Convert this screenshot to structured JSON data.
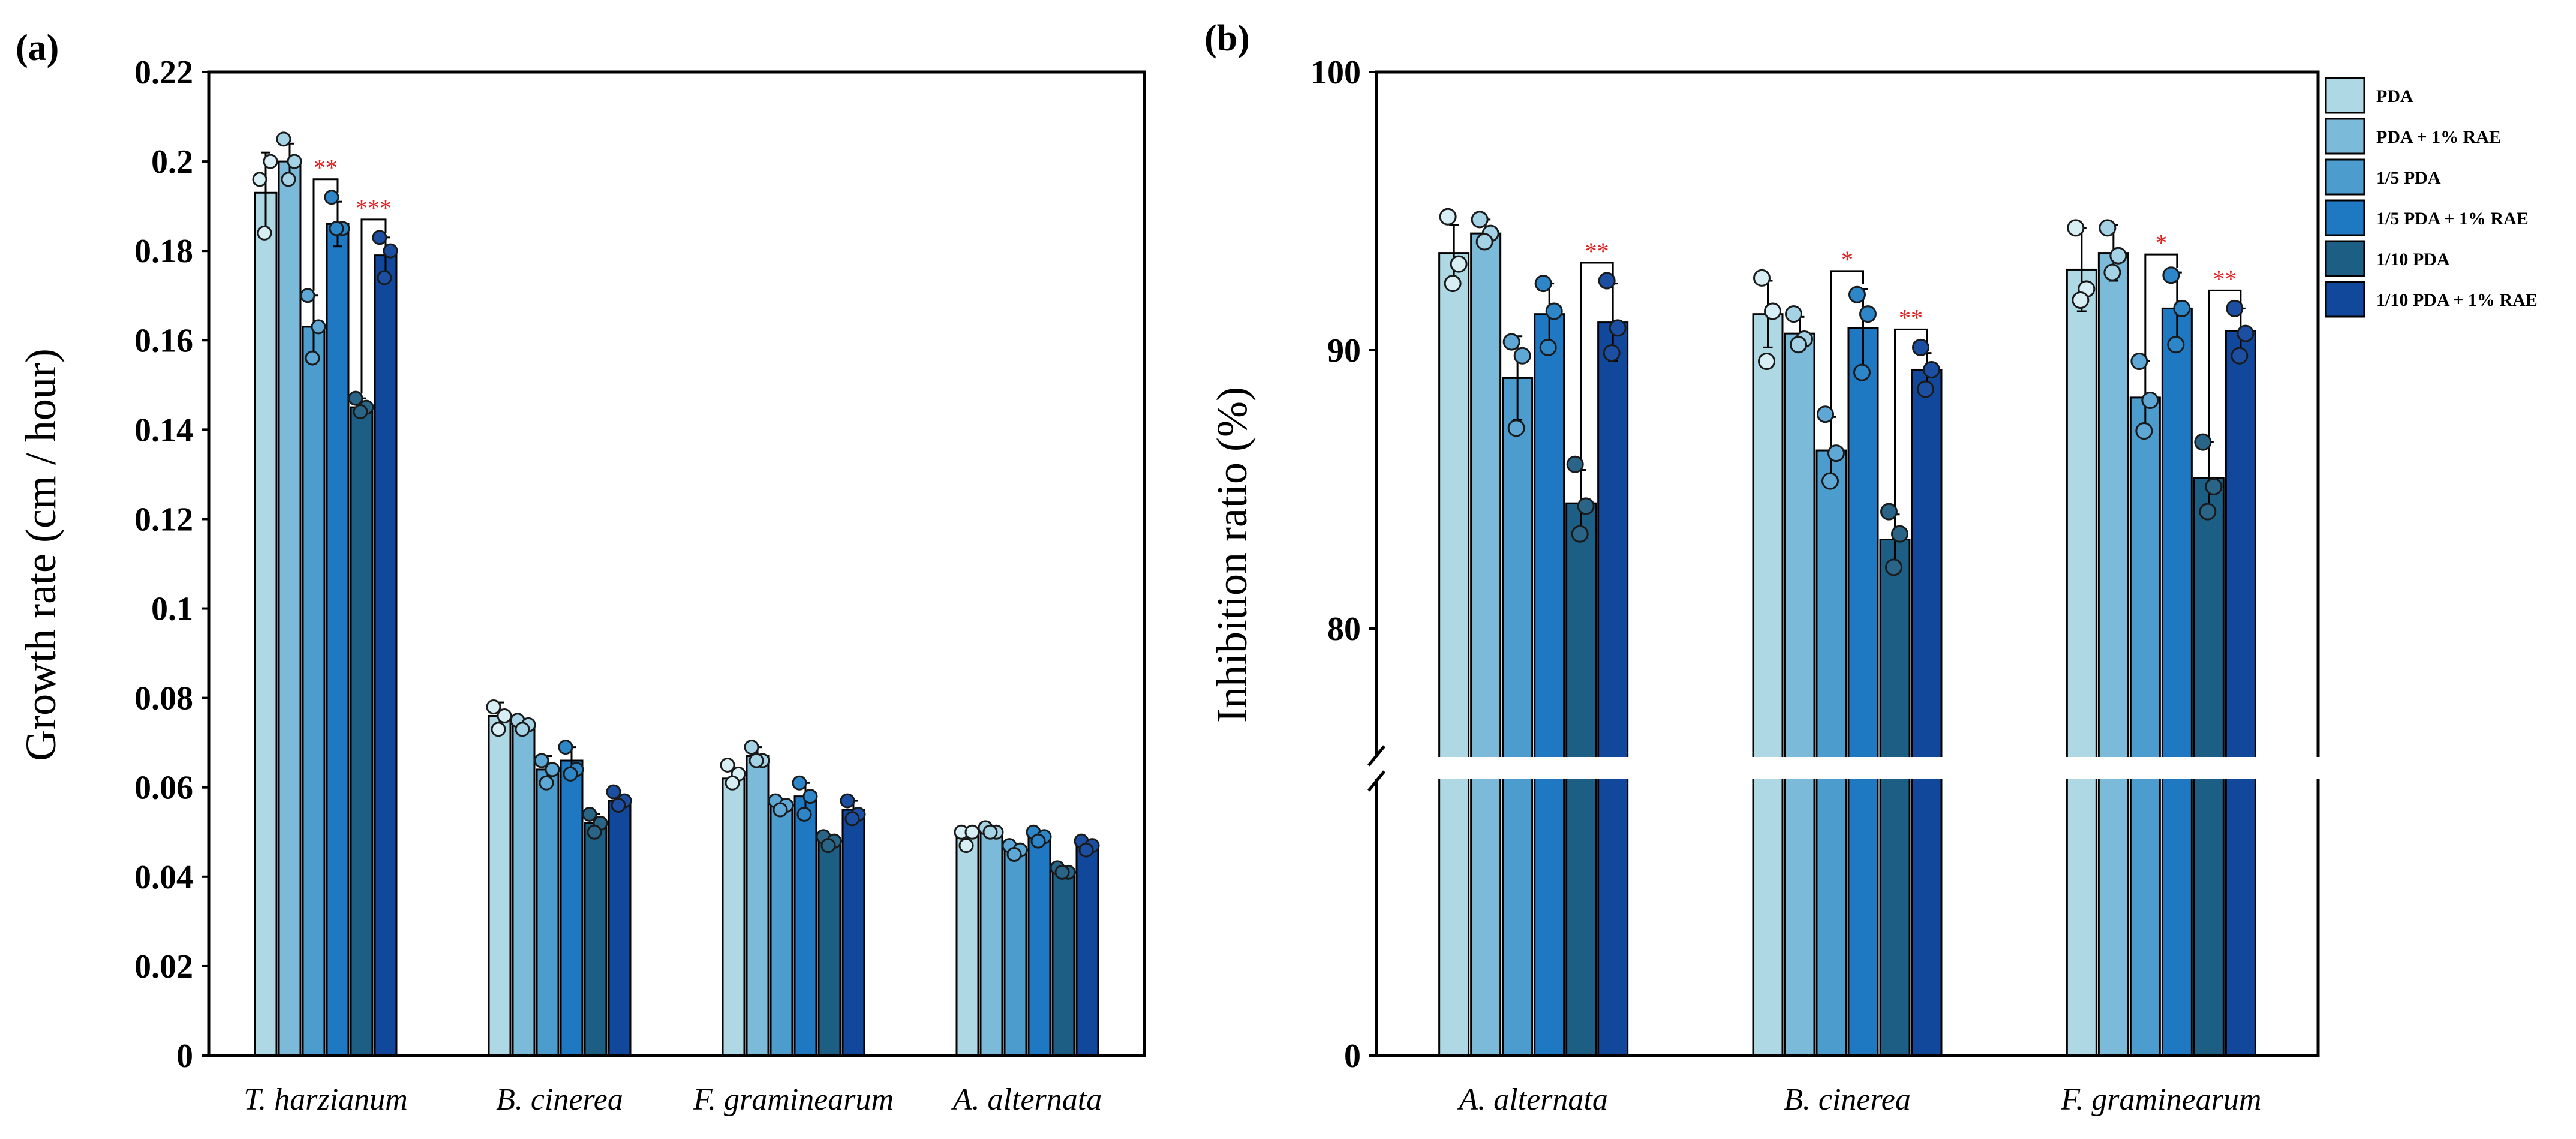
{
  "chart_data": [
    {
      "panel_label": "(a)",
      "type": "bar",
      "ylabel": "Growth rate (cm / hour)",
      "ylim": [
        0,
        0.22
      ],
      "yticks": [
        "0",
        "0.02",
        "0.04",
        "0.06",
        "0.08",
        "0.1",
        "0.12",
        "0.14",
        "0.16",
        "0.18",
        "0.2",
        "0.22"
      ],
      "categories": [
        "T. harzianum",
        "B. cinerea",
        "F. graminearum",
        "A. alternata"
      ],
      "series": [
        {
          "name": "PDA",
          "values": [
            0.193,
            0.076,
            0.062,
            0.049
          ],
          "error": [
            0.009,
            0.003,
            0.002,
            0.002
          ],
          "points": [
            [
              0.196,
              0.2,
              0.184
            ],
            [
              0.078,
              0.076,
              0.073
            ],
            [
              0.065,
              0.063,
              0.061
            ],
            [
              0.05,
              0.05,
              0.047
            ]
          ]
        },
        {
          "name": "PDA + 1% RAE",
          "values": [
            0.2,
            0.074,
            0.067,
            0.05
          ],
          "error": [
            0.004,
            0.001,
            0.002,
            0.001
          ],
          "points": [
            [
              0.205,
              0.2,
              0.196
            ],
            [
              0.075,
              0.074,
              0.073
            ],
            [
              0.069,
              0.066,
              0.066
            ],
            [
              0.051,
              0.05,
              0.05
            ]
          ]
        },
        {
          "name": "1/5 PDA",
          "values": [
            0.163,
            0.064,
            0.056,
            0.046
          ],
          "error": [
            0.007,
            0.003,
            0.001,
            0.001
          ],
          "points": [
            [
              0.17,
              0.163,
              0.156
            ],
            [
              0.066,
              0.064,
              0.061
            ],
            [
              0.057,
              0.056,
              0.055
            ],
            [
              0.047,
              0.046,
              0.045
            ]
          ]
        },
        {
          "name": "1/5 PDA + 1% RAE",
          "values": [
            0.186,
            0.066,
            0.058,
            0.049
          ],
          "error": [
            0.005,
            0.003,
            0.003,
            0.001
          ],
          "points": [
            [
              0.192,
              0.185,
              0.185
            ],
            [
              0.069,
              0.064,
              0.063
            ],
            [
              0.061,
              0.058,
              0.054
            ],
            [
              0.05,
              0.049,
              0.048
            ]
          ]
        },
        {
          "name": "1/10 PDA",
          "values": [
            0.145,
            0.052,
            0.048,
            0.041
          ],
          "error": [
            0.002,
            0.002,
            0.001,
            0.001
          ],
          "points": [
            [
              0.147,
              0.145,
              0.144
            ],
            [
              0.054,
              0.052,
              0.05
            ],
            [
              0.049,
              0.048,
              0.047
            ],
            [
              0.042,
              0.041,
              0.041
            ]
          ]
        },
        {
          "name": "1/10 PDA + 1% RAE",
          "values": [
            0.179,
            0.057,
            0.055,
            0.047
          ],
          "error": [
            0.004,
            0.001,
            0.002,
            0.001
          ],
          "points": [
            [
              0.183,
              0.18,
              0.174
            ],
            [
              0.059,
              0.057,
              0.056
            ],
            [
              0.057,
              0.054,
              0.053
            ],
            [
              0.048,
              0.047,
              0.046
            ]
          ]
        }
      ],
      "significance": [
        {
          "category": "T. harzianum",
          "from_series": 2,
          "to_series": 3,
          "label": "**"
        },
        {
          "category": "T. harzianum",
          "from_series": 4,
          "to_series": 5,
          "label": "***"
        }
      ]
    },
    {
      "panel_label": "(b)",
      "type": "bar",
      "ylabel": "Inhibition ratio (%)",
      "axis_break": [
        0,
        75
      ],
      "ylim": [
        75,
        100
      ],
      "yticks": [
        "0",
        "80",
        "90",
        "100"
      ],
      "categories": [
        "A. alternata",
        "B. cinerea",
        "F. graminearum"
      ],
      "legend": {
        "position": "right",
        "entries": [
          "PDA",
          "PDA + 1% RAE",
          "1/5 PDA",
          "1/5 PDA + 1% RAE",
          "1/10 PDA",
          "1/10 PDA + 1% RAE"
        ]
      },
      "series": [
        {
          "name": "PDA",
          "values": [
            93.5,
            91.3,
            92.9
          ],
          "error": [
            1.0,
            1.2,
            1.5
          ],
          "points": [
            [
              94.8,
              93.1,
              92.4
            ],
            [
              92.6,
              91.4,
              89.6
            ],
            [
              94.4,
              92.2,
              91.8
            ]
          ]
        },
        {
          "name": "PDA + 1% RAE",
          "values": [
            94.2,
            90.6,
            93.5
          ],
          "error": [
            0.5,
            0.6,
            1.0
          ],
          "points": [
            [
              94.7,
              94.2,
              93.9
            ],
            [
              91.3,
              90.4,
              90.2
            ],
            [
              94.4,
              93.4,
              92.8
            ]
          ]
        },
        {
          "name": "1/5 PDA",
          "values": [
            89.0,
            86.4,
            88.3
          ],
          "error": [
            1.5,
            1.2,
            1.3
          ],
          "points": [
            [
              90.3,
              89.8,
              87.2
            ],
            [
              87.7,
              86.3,
              85.3
            ],
            [
              89.6,
              88.2,
              87.1
            ]
          ]
        },
        {
          "name": "1/5 PDA + 1% RAE",
          "values": [
            91.3,
            90.8,
            91.5
          ],
          "error": [
            1.1,
            1.4,
            1.3
          ],
          "points": [
            [
              92.4,
              91.4,
              90.1
            ],
            [
              92.0,
              91.3,
              89.2
            ],
            [
              92.7,
              91.5,
              90.2
            ]
          ]
        },
        {
          "name": "1/10 PDA",
          "values": [
            84.5,
            83.2,
            85.4
          ],
          "error": [
            1.2,
            0.9,
            1.3
          ],
          "points": [
            [
              85.9,
              84.4,
              83.4
            ],
            [
              84.2,
              83.4,
              82.2
            ],
            [
              86.7,
              85.1,
              84.2
            ]
          ]
        },
        {
          "name": "1/10 PDA + 1% RAE",
          "values": [
            91.0,
            89.3,
            90.7
          ],
          "error": [
            1.4,
            0.6,
            0.8
          ],
          "points": [
            [
              92.5,
              90.8,
              89.9
            ],
            [
              90.1,
              89.3,
              88.6
            ],
            [
              91.5,
              90.6,
              89.8
            ]
          ]
        }
      ],
      "significance": [
        {
          "category": "A. alternata",
          "from_series": 4,
          "to_series": 5,
          "label": "**"
        },
        {
          "category": "B. cinerea",
          "from_series": 2,
          "to_series": 3,
          "label": "*"
        },
        {
          "category": "B. cinerea",
          "from_series": 4,
          "to_series": 5,
          "label": "**"
        },
        {
          "category": "F. graminearum",
          "from_series": 2,
          "to_series": 3,
          "label": "*"
        },
        {
          "category": "F. graminearum",
          "from_series": 4,
          "to_series": 5,
          "label": "**"
        }
      ]
    }
  ],
  "colors": {
    "series": [
      "#aed8e4",
      "#7bbad8",
      "#4c9cce",
      "#1f78c2",
      "#1d5f84",
      "#11489c"
    ],
    "points": [
      "#d8eef5",
      "#a6d2e6",
      "#5fa8d6",
      "#2c86c8",
      "#2a6486",
      "#1c4fa1"
    ],
    "significance": "#e02020"
  }
}
